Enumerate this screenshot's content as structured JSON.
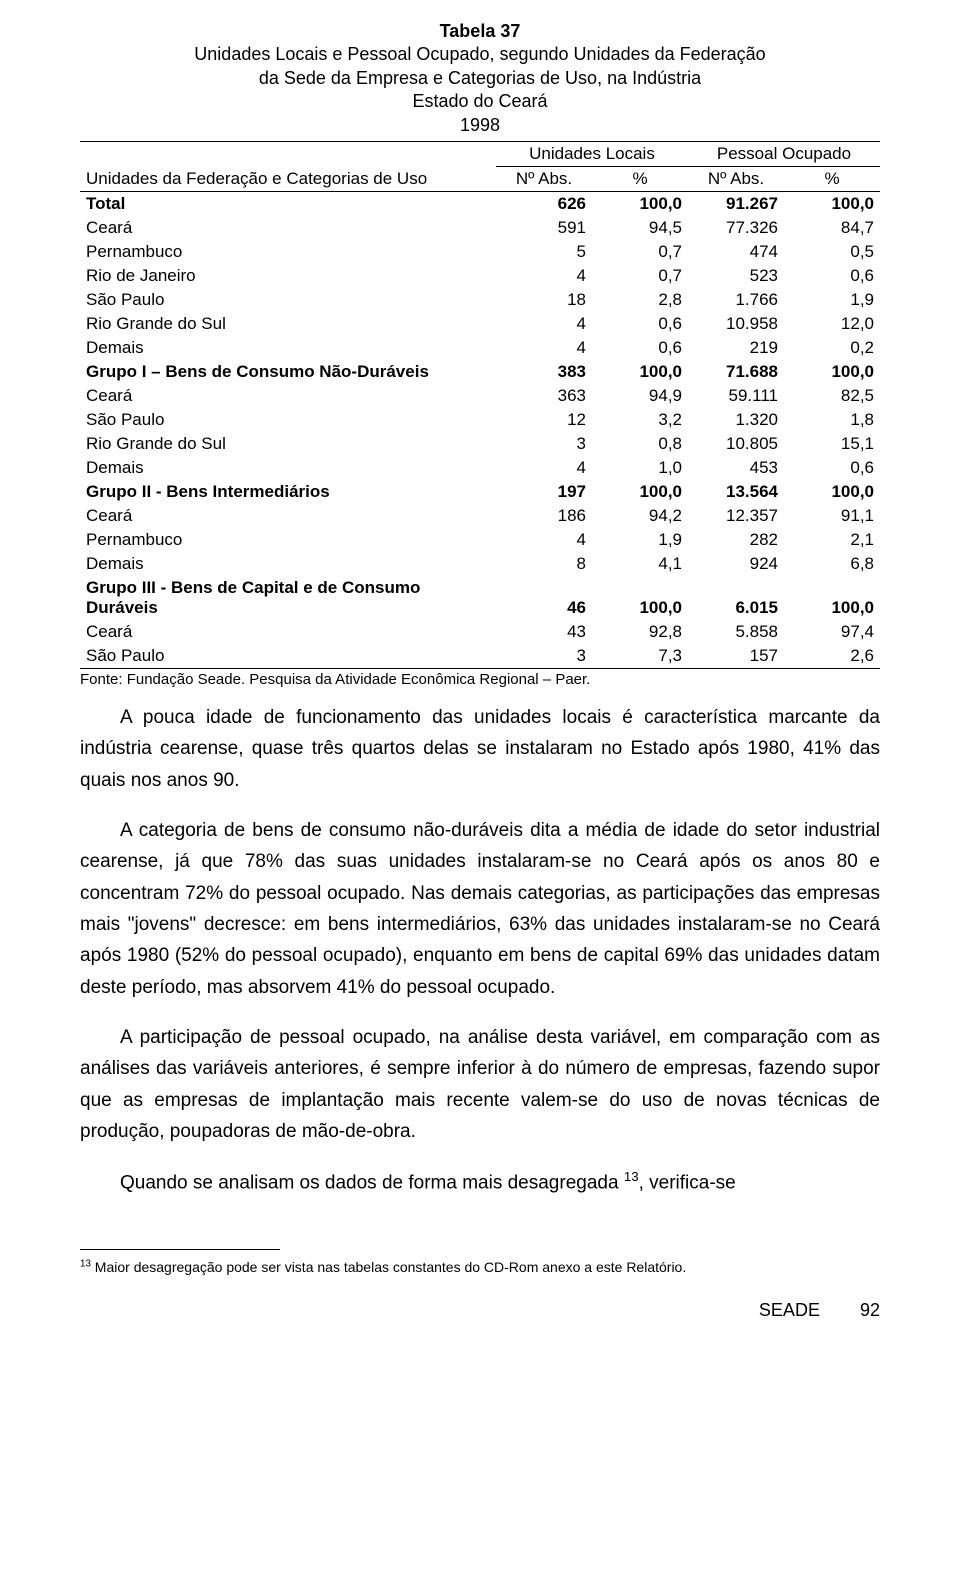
{
  "table": {
    "number_label": "Tabela 37",
    "title_line1": "Unidades Locais e Pessoal Ocupado, segundo Unidades da Federação",
    "title_line2": "da Sede da Empresa e Categorias de Uso, na Indústria",
    "title_line3": "Estado do Ceará",
    "title_line4": "1998",
    "row_header": "Unidades da Federação e Categorias de Uso",
    "group_headers": [
      "Unidades Locais",
      "Pessoal Ocupado"
    ],
    "sub_headers": [
      "Nº Abs.",
      "%",
      "Nº Abs.",
      "%"
    ],
    "rows": [
      {
        "label": "Total",
        "bold": true,
        "v": [
          "626",
          "100,0",
          "91.267",
          "100,0"
        ]
      },
      {
        "label": "Ceará",
        "bold": false,
        "v": [
          "591",
          "94,5",
          "77.326",
          "84,7"
        ]
      },
      {
        "label": "Pernambuco",
        "bold": false,
        "v": [
          "5",
          "0,7",
          "474",
          "0,5"
        ]
      },
      {
        "label": "Rio de Janeiro",
        "bold": false,
        "v": [
          "4",
          "0,7",
          "523",
          "0,6"
        ]
      },
      {
        "label": "São Paulo",
        "bold": false,
        "v": [
          "18",
          "2,8",
          "1.766",
          "1,9"
        ]
      },
      {
        "label": "Rio Grande do Sul",
        "bold": false,
        "v": [
          "4",
          "0,6",
          "10.958",
          "12,0"
        ]
      },
      {
        "label": "Demais",
        "bold": false,
        "v": [
          "4",
          "0,6",
          "219",
          "0,2"
        ]
      },
      {
        "label": "Grupo I – Bens de Consumo Não-Duráveis",
        "bold": true,
        "v": [
          "383",
          "100,0",
          "71.688",
          "100,0"
        ]
      },
      {
        "label": "Ceará",
        "bold": false,
        "v": [
          "363",
          "94,9",
          "59.111",
          "82,5"
        ]
      },
      {
        "label": "São Paulo",
        "bold": false,
        "v": [
          "12",
          "3,2",
          "1.320",
          "1,8"
        ]
      },
      {
        "label": "Rio Grande do Sul",
        "bold": false,
        "v": [
          "3",
          "0,8",
          "10.805",
          "15,1"
        ]
      },
      {
        "label": "Demais",
        "bold": false,
        "v": [
          "4",
          "1,0",
          "453",
          "0,6"
        ]
      },
      {
        "label": "Grupo II - Bens Intermediários",
        "bold": true,
        "v": [
          "197",
          "100,0",
          "13.564",
          "100,0"
        ]
      },
      {
        "label": "Ceará",
        "bold": false,
        "v": [
          "186",
          "94,2",
          "12.357",
          "91,1"
        ]
      },
      {
        "label": "Pernambuco",
        "bold": false,
        "v": [
          "4",
          "1,9",
          "282",
          "2,1"
        ]
      },
      {
        "label": "Demais",
        "bold": false,
        "v": [
          "8",
          "4,1",
          "924",
          "6,8"
        ]
      },
      {
        "label": "Grupo III - Bens de Capital e de Consumo Duráveis",
        "bold": true,
        "v": [
          "46",
          "100,0",
          "6.015",
          "100,0"
        ]
      },
      {
        "label": "Ceará",
        "bold": false,
        "v": [
          "43",
          "92,8",
          "5.858",
          "97,4"
        ]
      },
      {
        "label": "São Paulo",
        "bold": false,
        "v": [
          "3",
          "7,3",
          "157",
          "2,6"
        ]
      }
    ],
    "fonte": "Fonte: Fundação Seade. Pesquisa da Atividade Econômica Regional – Paer.",
    "col_widths": [
      "52%",
      "12%",
      "12%",
      "12%",
      "12%"
    ]
  },
  "paragraphs": {
    "p1": "A pouca idade de funcionamento das unidades locais é característica marcante da indústria cearense, quase três quartos delas se instalaram no Estado após 1980, 41% das quais nos anos 90.",
    "p2": "A categoria de bens de consumo não-duráveis dita a média de idade do setor industrial cearense, já que 78% das suas unidades instalaram-se no Ceará após os anos 80 e concentram 72% do pessoal ocupado. Nas demais categorias, as participações das empresas mais \"jovens\" decresce: em bens intermediários, 63% das unidades instalaram-se no Ceará após 1980 (52% do pessoal ocupado), enquanto em bens de capital 69% das unidades datam deste período, mas absorvem 41% do pessoal ocupado.",
    "p3": "A participação de pessoal ocupado, na análise desta variável, em comparação com as análises das variáveis anteriores, é sempre inferior à do número de empresas, fazendo supor que as empresas de implantação mais recente valem-se do uso de novas técnicas de produção, poupadoras de mão-de-obra.",
    "p4_pre": "Quando se analisam os dados de forma mais desagregada ",
    "p4_sup": "13",
    "p4_post": ", verifica-se"
  },
  "footnote": {
    "sup": "13",
    "text": " Maior desagregação pode ser vista nas tabelas constantes do CD-Rom anexo a este Relatório."
  },
  "footer": {
    "label": "SEADE",
    "page": "92"
  }
}
